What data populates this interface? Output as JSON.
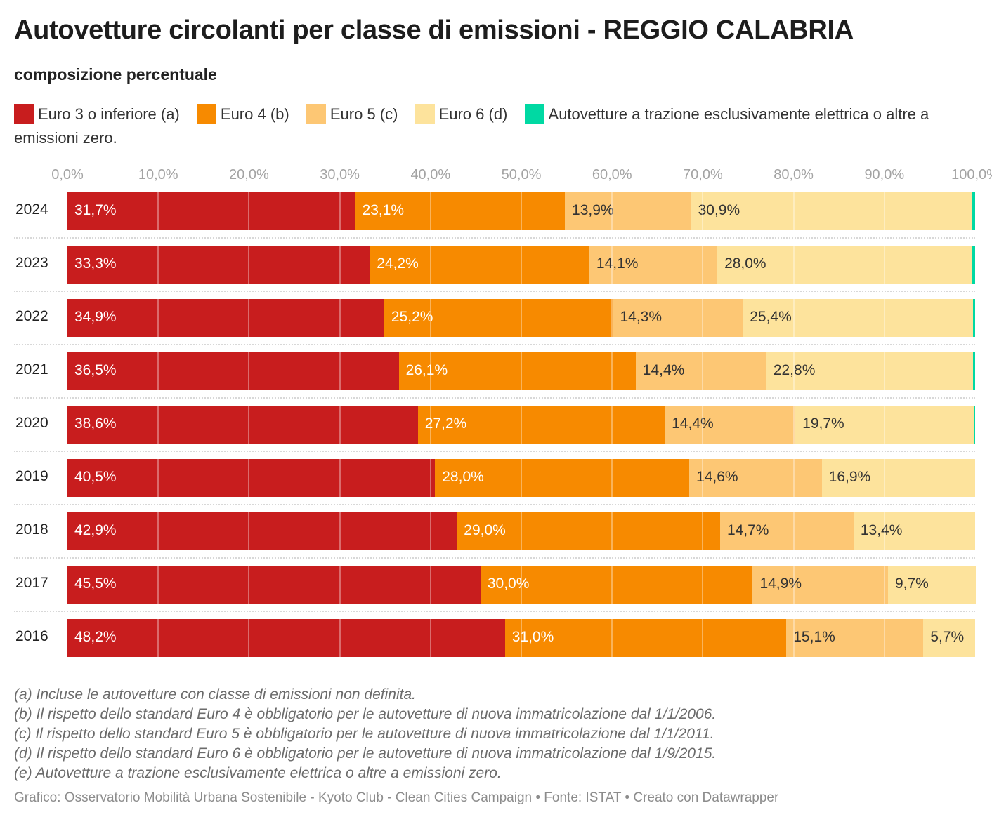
{
  "title": "Autovetture circolanti per classe di emissioni - REGGIO CALABRIA",
  "subtitle": "composizione percentuale",
  "legend": [
    {
      "label": "Euro 3 o inferiore (a)",
      "color": "#c81d1e"
    },
    {
      "label": "Euro 4 (b)",
      "color": "#f78a00"
    },
    {
      "label": "Euro 5 (c)",
      "color": "#fdc774"
    },
    {
      "label": "Euro 6 (d)",
      "color": "#fde39c"
    },
    {
      "label": "Autovetture a trazione esclusivamente elettrica o altre a emissioni zero.",
      "color": "#00d9a3"
    }
  ],
  "chart_data": {
    "type": "bar",
    "orientation": "horizontal",
    "stacked": true,
    "title": "Autovetture circolanti per classe di emissioni - REGGIO CALABRIA",
    "subtitle": "composizione percentuale",
    "xlim": [
      0,
      100
    ],
    "x_ticks": [
      "0,0%",
      "10,0%",
      "20,0%",
      "30,0%",
      "40,0%",
      "50,0%",
      "60,0%",
      "70,0%",
      "80,0%",
      "90,0%",
      "100,0%"
    ],
    "categories": [
      "2024",
      "2023",
      "2022",
      "2021",
      "2020",
      "2019",
      "2018",
      "2017",
      "2016"
    ],
    "series": [
      {
        "name": "Euro 3 o inferiore (a)",
        "color": "#c81d1e",
        "label_color": "#ffffff",
        "values": [
          31.7,
          33.3,
          34.9,
          36.5,
          38.6,
          40.5,
          42.9,
          45.5,
          48.2
        ],
        "labels": [
          "31,7%",
          "33,3%",
          "34,9%",
          "36,5%",
          "38,6%",
          "40,5%",
          "42,9%",
          "45,5%",
          "48,2%"
        ]
      },
      {
        "name": "Euro 4 (b)",
        "color": "#f78a00",
        "label_color": "#ffffff",
        "values": [
          23.1,
          24.2,
          25.2,
          26.1,
          27.2,
          28.0,
          29.0,
          30.0,
          31.0
        ],
        "labels": [
          "23,1%",
          "24,2%",
          "25,2%",
          "26,1%",
          "27,2%",
          "28,0%",
          "29,0%",
          "30,0%",
          "31,0%"
        ]
      },
      {
        "name": "Euro 5 (c)",
        "color": "#fdc774",
        "label_color": "#333333",
        "values": [
          13.9,
          14.1,
          14.3,
          14.4,
          14.4,
          14.6,
          14.7,
          14.9,
          15.1
        ],
        "labels": [
          "13,9%",
          "14,1%",
          "14,3%",
          "14,4%",
          "14,4%",
          "14,6%",
          "14,7%",
          "14,9%",
          "15,1%"
        ]
      },
      {
        "name": "Euro 6 (d)",
        "color": "#fde39c",
        "label_color": "#333333",
        "values": [
          30.9,
          28.0,
          25.4,
          22.8,
          19.7,
          16.9,
          13.4,
          9.7,
          5.7
        ],
        "labels": [
          "30,9%",
          "28,0%",
          "25,4%",
          "22,8%",
          "19,7%",
          "16,9%",
          "13,4%",
          "9,7%",
          "5,7%"
        ]
      },
      {
        "name": "Autovetture a trazione esclusivamente elettrica o altre a emissioni zero.",
        "color": "#00d9a3",
        "values": [
          0.4,
          0.4,
          0.2,
          0.2,
          0.1,
          0,
          0,
          0,
          0
        ]
      }
    ]
  },
  "notes": [
    "(a) Incluse le autovetture con classe di emissioni non definita.",
    "(b) Il rispetto dello standard Euro 4 è obbligatorio per le autovetture di nuova immatricolazione dal 1/1/2006.",
    "(c) Il rispetto dello standard Euro 5 è obbligatorio per le autovetture di nuova immatricolazione dal 1/1/2011.",
    "(d) Il rispetto dello standard Euro 6 è obbligatorio per le autovetture di nuova immatricolazione dal 1/9/2015.",
    "(e) Autovetture a trazione esclusivamente elettrica o altre a emissioni zero."
  ],
  "credits": "Grafico: Osservatorio Mobilità Urbana Sostenibile - Kyoto Club - Clean Cities Campaign • Fonte: ISTAT • Creato con Datawrapper"
}
